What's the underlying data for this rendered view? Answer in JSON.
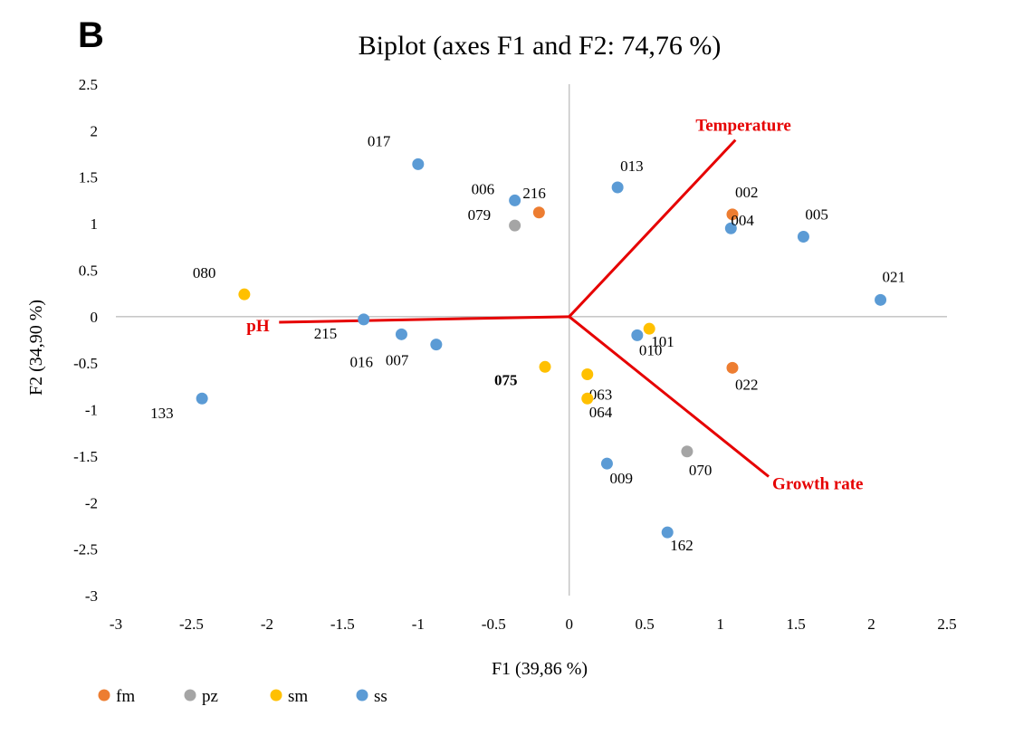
{
  "panel_letter": "B",
  "chart_data": {
    "type": "scatter",
    "title": "Biplot (axes F1 and F2: 74,76 %)",
    "xlabel": "F1 (39,86 %)",
    "ylabel": "F2 (34,90 %)",
    "xlim": [
      -3,
      2.5
    ],
    "ylim": [
      -3,
      2.5
    ],
    "x_ticks": [
      "-3",
      "-2.5",
      "-2",
      "-1.5",
      "-1",
      "-0.5",
      "0",
      "0.5",
      "1",
      "1.5",
      "2",
      "2.5"
    ],
    "y_ticks": [
      "2.5",
      "2",
      "1.5",
      "1",
      "0.5",
      "0",
      "-0.5",
      "-1",
      "-1.5",
      "-2",
      "-2.5",
      "-3"
    ],
    "grid": false,
    "axes_through_origin": true,
    "legend_placement": "bottom-left",
    "series": [
      {
        "name": "fm",
        "color": "#ED7D31",
        "points": [
          {
            "label": "216",
            "x": -0.2,
            "y": 1.12
          },
          {
            "label": "002",
            "x": 1.08,
            "y": 1.1
          },
          {
            "label": "022",
            "x": 1.08,
            "y": -0.55
          }
        ]
      },
      {
        "name": "pz",
        "color": "#A5A5A5",
        "points": [
          {
            "label": "079",
            "x": -0.36,
            "y": 0.98
          },
          {
            "label": "070",
            "x": 0.78,
            "y": -1.45
          }
        ]
      },
      {
        "name": "sm",
        "color": "#FFC000",
        "points": [
          {
            "label": "080",
            "x": -2.15,
            "y": 0.24
          },
          {
            "label": "075",
            "x": -0.16,
            "y": -0.54,
            "bold": true
          },
          {
            "label": "063",
            "x": 0.12,
            "y": -0.62
          },
          {
            "label": "064",
            "x": 0.12,
            "y": -0.88
          },
          {
            "label": "101",
            "x": 0.53,
            "y": -0.13
          }
        ]
      },
      {
        "name": "ss",
        "color": "#5B9BD5",
        "points": [
          {
            "label": "017",
            "x": -1.0,
            "y": 1.64
          },
          {
            "label": "006",
            "x": -0.36,
            "y": 1.25
          },
          {
            "label": "013",
            "x": 0.32,
            "y": 1.39
          },
          {
            "label": "004",
            "x": 1.07,
            "y": 0.95
          },
          {
            "label": "005",
            "x": 1.55,
            "y": 0.86
          },
          {
            "label": "021",
            "x": 2.06,
            "y": 0.18
          },
          {
            "label": "215",
            "x": -1.36,
            "y": -0.03
          },
          {
            "label": "016",
            "x": -1.11,
            "y": -0.19
          },
          {
            "label": "007",
            "x": -0.88,
            "y": -0.3
          },
          {
            "label": "010",
            "x": 0.45,
            "y": -0.2
          },
          {
            "label": "133",
            "x": -2.43,
            "y": -0.88
          },
          {
            "label": "009",
            "x": 0.25,
            "y": -1.58
          },
          {
            "label": "162",
            "x": 0.65,
            "y": -2.32
          }
        ]
      }
    ],
    "vectors": [
      {
        "name": "Temperature",
        "x": 1.1,
        "y": 1.9,
        "color": "#E60000"
      },
      {
        "name": "pH",
        "x": -1.92,
        "y": -0.06,
        "color": "#E60000"
      },
      {
        "name": "Growth rate",
        "x": 1.32,
        "y": -1.72,
        "color": "#E60000"
      }
    ],
    "axis_line_color": "#BFBFBF"
  }
}
